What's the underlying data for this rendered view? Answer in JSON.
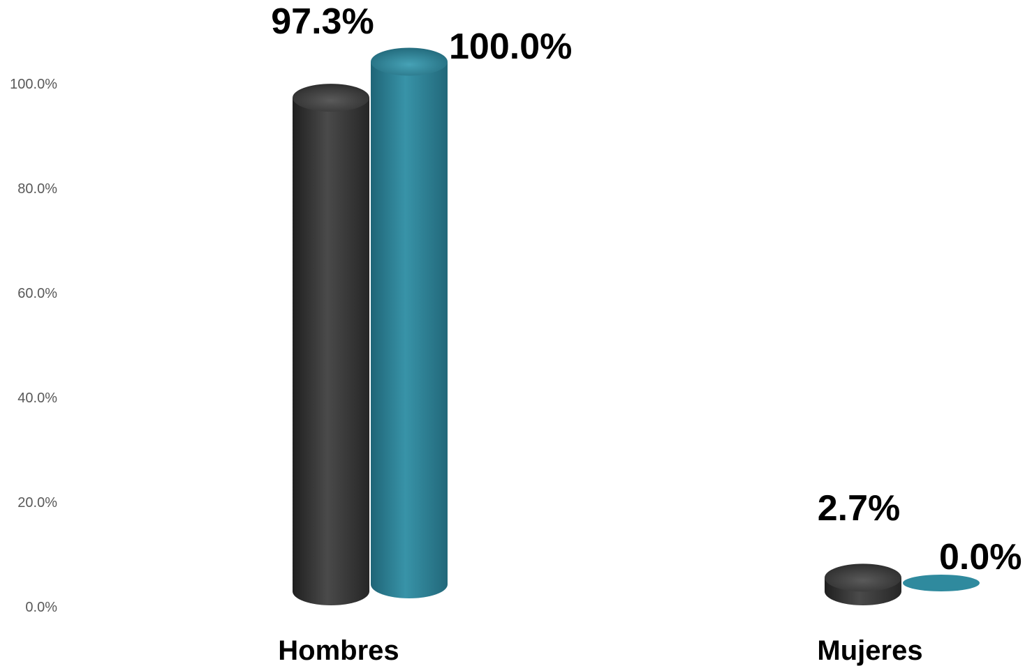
{
  "chart_data": {
    "type": "bar",
    "style": "3d-cylinder",
    "categories": [
      "Hombres",
      "Mujeres"
    ],
    "series": [
      {
        "color": "#3a3a3a",
        "values": [
          97.3,
          2.7
        ],
        "labels": [
          "97.3%",
          "2.7%"
        ]
      },
      {
        "color": "#2f8a9e",
        "values": [
          100.0,
          0.0
        ],
        "labels": [
          "100.0%",
          "0.0%"
        ]
      }
    ],
    "y_ticks": [
      0,
      20,
      40,
      60,
      80,
      100
    ],
    "y_tick_labels": [
      "0.0%",
      "20.0%",
      "40.0%",
      "60.0%",
      "80.0%",
      "100.0%"
    ],
    "ylim": [
      0,
      100
    ],
    "grid": false,
    "legend": "none"
  }
}
